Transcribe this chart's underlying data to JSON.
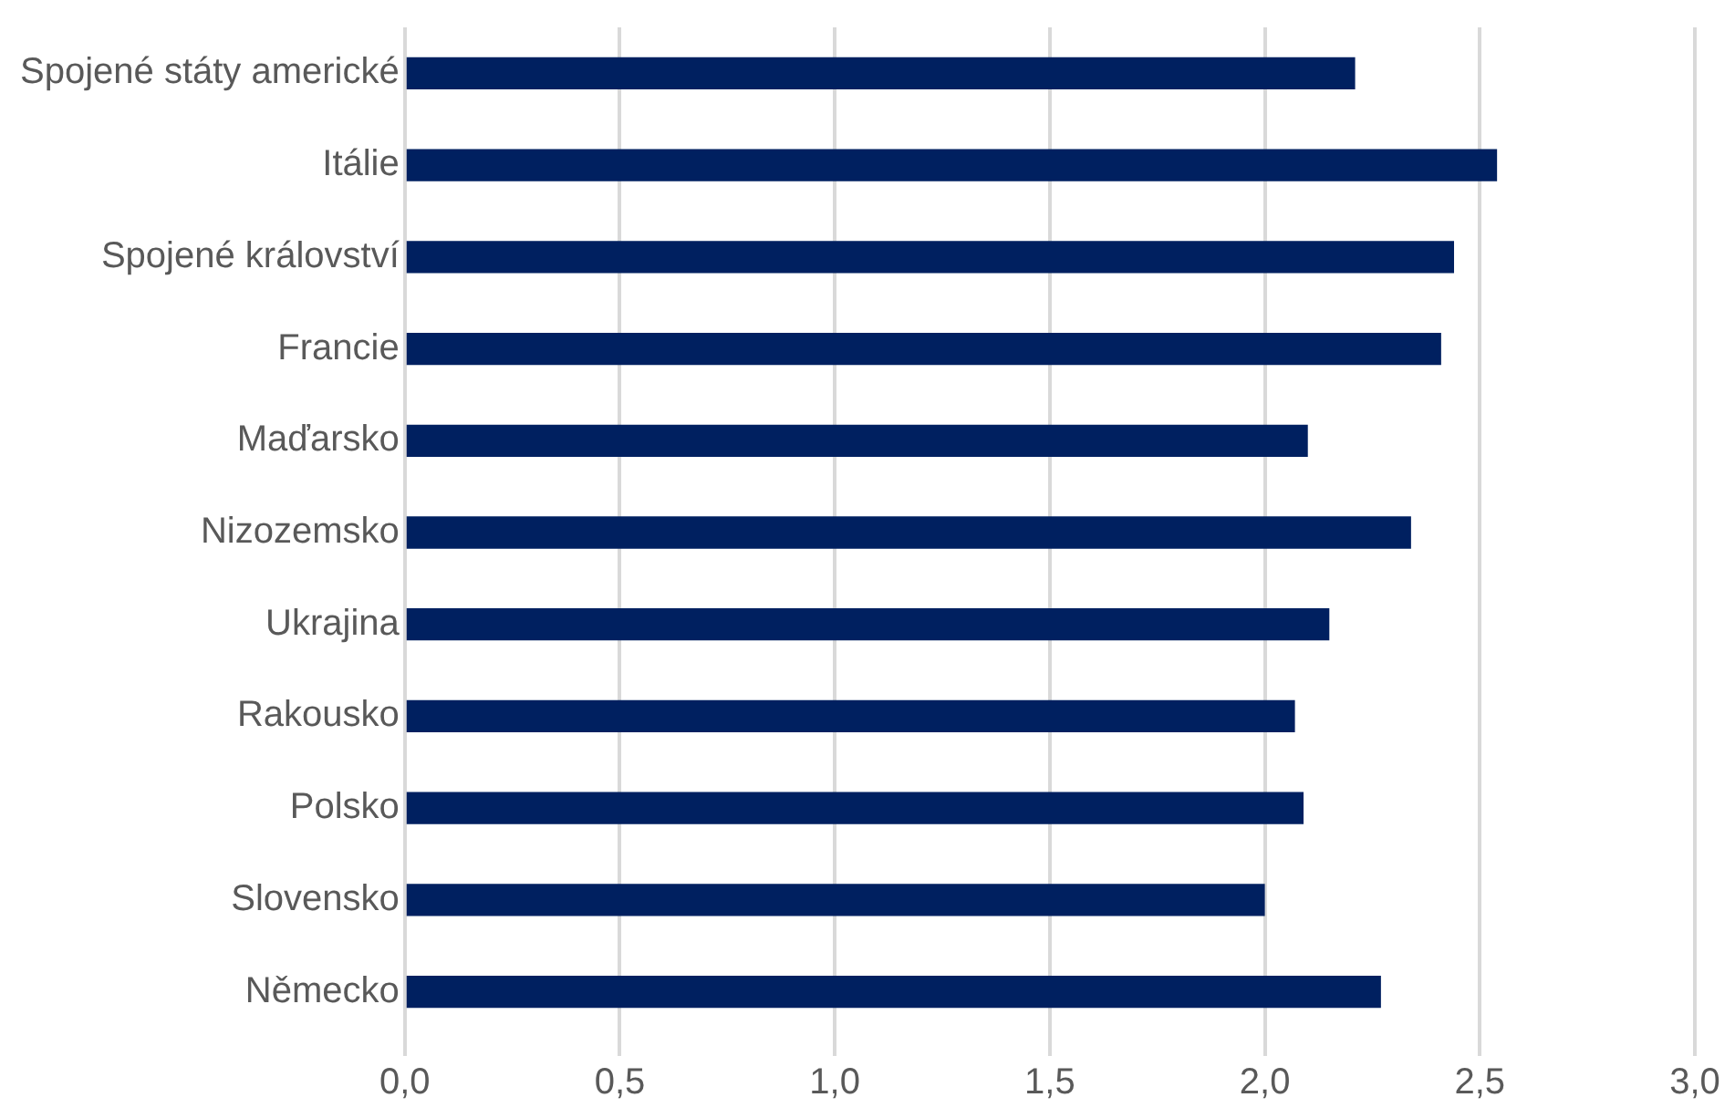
{
  "chart_data": {
    "type": "bar",
    "orientation": "horizontal",
    "categories": [
      "Spojené státy americké",
      "Itálie",
      "Spojené království",
      "Francie",
      "Maďarsko",
      "Nizozemsko",
      "Ukrajina",
      "Rakousko",
      "Polsko",
      "Slovensko",
      "Německo"
    ],
    "values": [
      2.21,
      2.54,
      2.44,
      2.41,
      2.1,
      2.34,
      2.15,
      2.07,
      2.09,
      2.0,
      2.27
    ],
    "color": "#002060",
    "xlim": [
      0,
      3
    ],
    "xticks": [
      {
        "value": 0,
        "label": "0,0"
      },
      {
        "value": 0.5,
        "label": "0,5"
      },
      {
        "value": 1,
        "label": "1,0"
      },
      {
        "value": 1.5,
        "label": "1,5"
      },
      {
        "value": 2,
        "label": "2,0"
      },
      {
        "value": 2.5,
        "label": "2,5"
      },
      {
        "value": 3,
        "label": "3,0"
      }
    ],
    "grid": "x",
    "legend": false
  }
}
